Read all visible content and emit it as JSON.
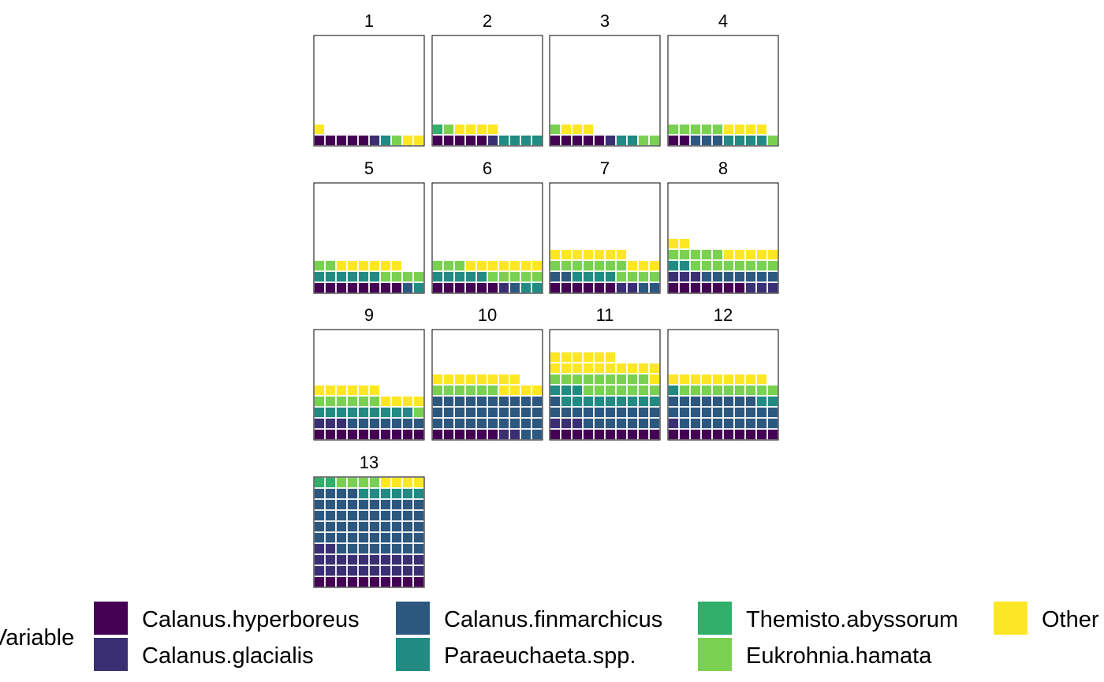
{
  "chart_data": {
    "type": "waffle",
    "legend": {
      "title": "Variable",
      "placement": "bottom",
      "entries": [
        {
          "label": "Calanus.hyperboreus",
          "color": "#440154"
        },
        {
          "label": "Calanus.glacialis",
          "color": "#3b2f73"
        },
        {
          "label": "Calanus.finmarchicus",
          "color": "#2c5880"
        },
        {
          "label": "Paraeuchaeta.spp.",
          "color": "#218b83"
        },
        {
          "label": "Themisto.abyssorum",
          "color": "#30ae6a"
        },
        {
          "label": "Eukrohnia.hamata",
          "color": "#7ad151"
        },
        {
          "label": "Other",
          "color": "#fde725"
        }
      ]
    },
    "grid": {
      "columns": 10,
      "rows": 10
    },
    "panels": [
      {
        "name": "1",
        "counts": [
          5,
          1,
          0,
          1,
          0,
          1,
          3
        ]
      },
      {
        "name": "2",
        "counts": [
          5,
          1,
          0,
          4,
          1,
          1,
          4
        ]
      },
      {
        "name": "3",
        "counts": [
          5,
          1,
          0,
          2,
          0,
          3,
          3
        ]
      },
      {
        "name": "4",
        "counts": [
          2,
          0,
          3,
          4,
          0,
          6,
          4
        ]
      },
      {
        "name": "5",
        "counts": [
          8,
          0,
          1,
          7,
          0,
          6,
          6
        ]
      },
      {
        "name": "6",
        "counts": [
          6,
          1,
          1,
          7,
          0,
          8,
          7
        ]
      },
      {
        "name": "7",
        "counts": [
          6,
          2,
          4,
          4,
          0,
          11,
          10
        ]
      },
      {
        "name": "8",
        "counts": [
          7,
          6,
          7,
          2,
          0,
          13,
          7
        ]
      },
      {
        "name": "9",
        "counts": [
          10,
          3,
          7,
          9,
          0,
          7,
          10
        ]
      },
      {
        "name": "10",
        "counts": [
          6,
          2,
          32,
          0,
          0,
          6,
          12
        ]
      },
      {
        "name": "11",
        "counts": [
          10,
          3,
          18,
          12,
          0,
          16,
          17
        ]
      },
      {
        "name": "12",
        "counts": [
          10,
          1,
          27,
          3,
          0,
          9,
          9
        ]
      },
      {
        "name": "13",
        "counts": [
          10,
          22,
          52,
          6,
          2,
          4,
          4
        ]
      }
    ]
  }
}
